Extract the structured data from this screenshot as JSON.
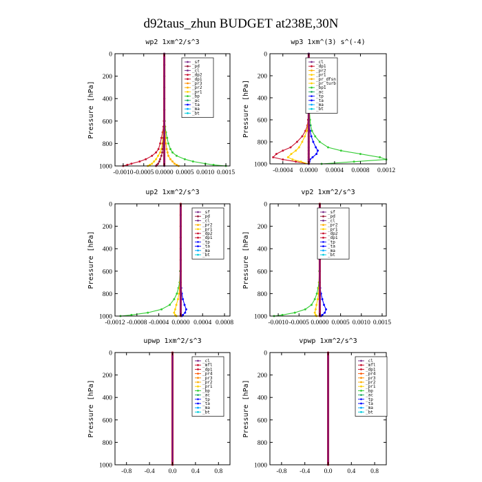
{
  "title": "d92taus_zhun  BUDGET at238E,30N",
  "colors": {
    "sf": "#7b2d8b",
    "pd": "#9b1b3b",
    "cl": "#7b2d8b",
    "dp2": "#c8102e",
    "dp1": "#c8102e",
    "pr3": "#ff8c00",
    "pr2": "#ffb000",
    "pr1": "#ffd000",
    "bp": "#33cc33",
    "ac": "#22aa66",
    "ta": "#0000ff",
    "tp": "#1a1aff",
    "ma": "#00aaff",
    "bt": "#00ccdd",
    "pr_dfsn": "#ffb000",
    "pr_turb": "#ffd000",
    "mfl": "#c8102e",
    "pr4": "#ff5500"
  },
  "chart_data": [
    {
      "type": "line",
      "title": "wp2   1xm^2/s^3",
      "ylabel": "Pressure [hPa]",
      "ylim": [
        1000,
        0
      ],
      "xlim": [
        -0.0012,
        0.0016
      ],
      "xticks": [
        -0.001,
        -0.0005,
        0.0,
        0.0005,
        0.001,
        0.0015
      ],
      "xtick_labels": [
        "-0.0010",
        "-0.0005",
        "0.0000",
        "0.0005",
        "0.0010",
        "0.0015"
      ],
      "yticks": [
        0,
        200,
        400,
        600,
        800,
        1000
      ],
      "ytick_labels": [
        "0",
        "200",
        "400",
        "600",
        "800",
        "1000"
      ],
      "legend": [
        "_sf",
        "_pd",
        "_cl",
        "_dp2",
        "_dp1",
        "_pr3",
        "_pr2",
        "_pr1",
        "_bp",
        "_ac",
        "_ta",
        "_ma",
        "_bt"
      ],
      "legend_keys": [
        "sf",
        "pd",
        "cl",
        "dp2",
        "dp1",
        "pr3",
        "pr2",
        "pr1",
        "bp",
        "ac",
        "ta",
        "ma",
        "bt"
      ],
      "levels": [
        0,
        100,
        200,
        300,
        400,
        500,
        600,
        650,
        700,
        750,
        800,
        850,
        880,
        910,
        940,
        960,
        980,
        990,
        1000
      ],
      "series": [
        {
          "key": "bp",
          "values": [
            0,
            0,
            0,
            0,
            0,
            0,
            1e-05,
            2e-05,
            4e-05,
            7e-05,
            0.0001,
            0.00015,
            0.0002,
            0.0003,
            0.0005,
            0.0007,
            0.001,
            0.0012,
            0.0015
          ]
        },
        {
          "key": "dp1",
          "values": [
            0,
            0,
            0,
            0,
            0,
            0,
            -1e-05,
            -2e-05,
            -4e-05,
            -7e-05,
            -0.0001,
            -0.00014,
            -0.0002,
            -0.0003,
            -0.00045,
            -0.0006,
            -0.0008,
            -0.0009,
            -0.001
          ]
        },
        {
          "key": "pr1",
          "values": [
            0,
            0,
            0,
            0,
            0,
            0,
            0,
            -1e-05,
            -2e-05,
            -3e-05,
            -5e-05,
            -7e-05,
            -0.0001,
            -0.00015,
            -0.0002,
            -0.00025,
            -0.0003,
            -0.00035,
            -0.0004
          ]
        },
        {
          "key": "pr2",
          "values": [
            0,
            0,
            0,
            0,
            0,
            0,
            0,
            1e-05,
            2e-05,
            3e-05,
            4e-05,
            6e-05,
            8e-05,
            0.0001,
            0.00015,
            0.0002,
            0.00025,
            0.0003,
            0.00035
          ]
        },
        {
          "key": "pd",
          "values": [
            0,
            0,
            0,
            0,
            0,
            0,
            0,
            -1e-05,
            -1e-05,
            -2e-05,
            -3e-05,
            -4e-05,
            -5e-05,
            -7e-05,
            -0.0001,
            -0.00012,
            -0.00015,
            -0.00018,
            -0.0002
          ]
        },
        {
          "key": "sf",
          "values": [
            0,
            0,
            0,
            0,
            0,
            0,
            0,
            0,
            0,
            0,
            0,
            0,
            0,
            0,
            0,
            0,
            0,
            0,
            0
          ]
        }
      ]
    },
    {
      "type": "line",
      "title": "wp3   1xm^(3) s^(-4)",
      "ylabel": "Pressure [hPa]",
      "ylim": [
        1000,
        0
      ],
      "xlim": [
        -0.0006,
        0.0012
      ],
      "xticks": [
        -0.0004,
        0.0,
        0.0004,
        0.0008,
        0.0012
      ],
      "xtick_labels": [
        "-0.0004",
        "0.0000",
        "0.0004",
        "0.0008",
        "0.0012"
      ],
      "yticks": [
        0,
        200,
        400,
        600,
        800,
        1000
      ],
      "ytick_labels": [
        "0",
        "200",
        "400",
        "600",
        "800",
        "1000"
      ],
      "legend": [
        "_cl",
        "_dp1",
        "_pr2",
        "_pr1",
        "_pr_dfsn",
        "_pr_turb",
        "_bp1",
        "_ac",
        "_tp",
        "_ta",
        "_ma",
        "_bt"
      ],
      "legend_keys": [
        "cl",
        "dp1",
        "pr2",
        "pr1",
        "pr_dfsn",
        "pr_turb",
        "bp",
        "ac",
        "tp",
        "ta",
        "ma",
        "bt"
      ],
      "levels": [
        0,
        100,
        200,
        300,
        400,
        500,
        600,
        650,
        700,
        750,
        800,
        850,
        880,
        910,
        940,
        960,
        980,
        1000
      ],
      "series": [
        {
          "key": "bp",
          "values": [
            0,
            0,
            0,
            0,
            0,
            1e-05,
            2e-05,
            3e-05,
            5e-05,
            0.0001,
            0.00017,
            0.0003,
            0.0005,
            0.0008,
            0.0011,
            0.0012,
            0.0007,
            0.0002
          ]
        },
        {
          "key": "dp1",
          "values": [
            0,
            0,
            0,
            0,
            0,
            0,
            -1e-05,
            -2e-05,
            -5e-05,
            -0.0001,
            -0.00018,
            -0.00028,
            -0.0004,
            -0.0005,
            -0.00055,
            -0.0004,
            -0.0002,
            0
          ]
        },
        {
          "key": "pr1",
          "values": [
            0,
            0,
            0,
            0,
            0,
            0,
            0,
            -1e-05,
            -3e-05,
            -6e-05,
            -0.0001,
            -0.00015,
            -0.0002,
            -0.00027,
            -0.00032,
            -0.00025,
            -0.00012,
            0
          ]
        },
        {
          "key": "ta",
          "values": [
            0,
            0,
            0,
            0,
            0,
            0,
            0,
            1e-05,
            2e-05,
            4e-05,
            7e-05,
            0.00011,
            0.00014,
            0.00012,
            6e-05,
            2e-05,
            1e-05,
            0
          ]
        },
        {
          "key": "cl",
          "values": [
            0,
            0,
            0,
            0,
            0,
            0,
            0,
            0,
            0,
            0,
            0,
            0,
            0,
            0,
            0,
            0,
            0,
            0
          ]
        }
      ]
    },
    {
      "type": "line",
      "title": "up2   1xm^2/s^3",
      "ylabel": "Pressure [hPa]",
      "ylim": [
        1000,
        0
      ],
      "xlim": [
        -0.0012,
        0.0009
      ],
      "xticks": [
        -0.0012,
        -0.0008,
        -0.0004,
        0.0,
        0.0004,
        0.0008
      ],
      "xtick_labels": [
        "-0.0012",
        "-0.0008",
        "-0.0004",
        "0.0000",
        "0.0004",
        "0.0008"
      ],
      "yticks": [
        0,
        200,
        400,
        600,
        800,
        1000
      ],
      "ytick_labels": [
        "0",
        "200",
        "400",
        "600",
        "800",
        "1000"
      ],
      "legend": [
        "_sf",
        "_pd",
        "_cl",
        "_pr2",
        "_pr1",
        "_dp2",
        "_dp1",
        "_tp",
        "_ta",
        "_ma",
        "_bt"
      ],
      "legend_keys": [
        "sf",
        "pd",
        "cl",
        "pr2",
        "pr1",
        "dp2",
        "dp1",
        "tp",
        "ta",
        "ma",
        "bt"
      ],
      "levels": [
        0,
        100,
        200,
        300,
        400,
        500,
        600,
        700,
        750,
        800,
        850,
        900,
        940,
        970,
        990,
        1000
      ],
      "series": [
        {
          "key": "bp",
          "values": [
            0,
            0,
            0,
            0,
            0,
            0,
            -1e-05,
            -2e-05,
            -4e-05,
            -7e-05,
            -0.00012,
            -0.0002,
            -0.00035,
            -0.0006,
            -0.0009,
            -0.0011
          ]
        },
        {
          "key": "ta",
          "values": [
            0,
            0,
            0,
            0,
            0,
            0,
            0,
            0,
            1e-05,
            2e-05,
            4e-05,
            7e-05,
            0.0001,
            8e-05,
            4e-05,
            2e-05
          ]
        },
        {
          "key": "pr1",
          "values": [
            0,
            0,
            0,
            0,
            0,
            0,
            0,
            -1e-05,
            -2e-05,
            -3e-05,
            -5e-05,
            -8e-05,
            -0.0001,
            -0.00012,
            -0.0001,
            -8e-05
          ]
        },
        {
          "key": "dp1",
          "values": [
            0,
            0,
            0,
            0,
            0,
            0,
            0,
            0,
            0,
            0,
            0,
            0,
            0,
            0,
            0,
            0
          ]
        }
      ]
    },
    {
      "type": "line",
      "title": "vp2   1xm^2/s^3",
      "ylabel": "Pressure [hPa]",
      "ylim": [
        1000,
        0
      ],
      "xlim": [
        -0.0012,
        0.0016
      ],
      "xticks": [
        -0.001,
        -0.0005,
        0.0,
        0.0005,
        0.001,
        0.0015
      ],
      "xtick_labels": [
        "-0.0010",
        "-0.0005",
        "0.0000",
        "0.0005",
        "0.0010",
        "0.0015"
      ],
      "yticks": [
        0,
        200,
        400,
        600,
        800,
        1000
      ],
      "ytick_labels": [
        "0",
        "200",
        "400",
        "600",
        "800",
        "1000"
      ],
      "legend": [
        "_sf",
        "_pd",
        "_cl",
        "_pr2",
        "_pr1",
        "_dp2",
        "_dp1",
        "_tp",
        "_ta",
        "_ma",
        "_bt"
      ],
      "legend_keys": [
        "sf",
        "pd",
        "cl",
        "pr2",
        "pr1",
        "dp2",
        "dp1",
        "tp",
        "ta",
        "ma",
        "bt"
      ],
      "levels": [
        0,
        100,
        200,
        300,
        400,
        500,
        600,
        700,
        750,
        800,
        850,
        900,
        940,
        970,
        990,
        1000
      ],
      "series": [
        {
          "key": "bp",
          "values": [
            0,
            0,
            0,
            0,
            0,
            0,
            -1e-05,
            -2e-05,
            -4e-05,
            -7e-05,
            -0.00012,
            -0.0002,
            -0.00035,
            -0.0006,
            -0.0009,
            -0.0011
          ]
        },
        {
          "key": "ta",
          "values": [
            0,
            0,
            0,
            0,
            0,
            0,
            0,
            0,
            1e-05,
            3e-05,
            6e-05,
            0.0001,
            0.00015,
            0.00012,
            6e-05,
            3e-05
          ]
        },
        {
          "key": "pr1",
          "values": [
            0,
            0,
            0,
            0,
            0,
            0,
            0,
            -1e-05,
            -2e-05,
            -3e-05,
            -5e-05,
            -8e-05,
            -0.0001,
            -0.00012,
            -0.0001,
            -8e-05
          ]
        },
        {
          "key": "dp1",
          "values": [
            0,
            0,
            0,
            0,
            0,
            0,
            0,
            0,
            0,
            0,
            0,
            0,
            0,
            0,
            0,
            0
          ]
        }
      ]
    },
    {
      "type": "line",
      "title": "upwp   1xm^2/s^3",
      "ylabel": "Pressure [hPa]",
      "ylim": [
        1000,
        0
      ],
      "xlim": [
        -1.0,
        1.0
      ],
      "xticks": [
        -0.8,
        -0.4,
        0.0,
        0.4,
        0.8
      ],
      "xtick_labels": [
        "-0.8",
        "-0.4",
        "0.0",
        "0.4",
        "0.8"
      ],
      "yticks": [
        0,
        200,
        400,
        600,
        800,
        1000
      ],
      "ytick_labels": [
        "0",
        "200",
        "400",
        "600",
        "800",
        "1000"
      ],
      "legend": [
        "_cl",
        "_mfl",
        "_dp1",
        "_pr4",
        "_pr3",
        "_pr2",
        "_pr1",
        "_bp",
        "_ac",
        "_tp",
        "_ta",
        "_ma",
        "_bt"
      ],
      "legend_keys": [
        "cl",
        "mfl",
        "dp1",
        "pr4",
        "pr3",
        "pr2",
        "pr1",
        "bp",
        "ac",
        "tp",
        "ta",
        "ma",
        "bt"
      ],
      "levels": [
        0,
        100,
        200,
        300,
        400,
        500,
        600,
        700,
        800,
        900,
        1000
      ],
      "series": [
        {
          "key": "cl",
          "values": [
            0,
            0,
            0,
            0,
            0,
            0,
            0,
            0,
            0,
            0,
            0
          ]
        },
        {
          "key": "dp1",
          "values": [
            0,
            0,
            0,
            0,
            0,
            0,
            0,
            0,
            0,
            0,
            0
          ]
        }
      ]
    },
    {
      "type": "line",
      "title": "vpwp   1xm^2/s^3",
      "ylabel": "Pressure [hPa]",
      "ylim": [
        1000,
        0
      ],
      "xlim": [
        -1.0,
        1.0
      ],
      "xticks": [
        -0.8,
        -0.4,
        0.0,
        0.4,
        0.8
      ],
      "xtick_labels": [
        "-0.8",
        "-0.4",
        "0.0",
        "0.4",
        "0.8"
      ],
      "yticks": [
        0,
        200,
        400,
        600,
        800,
        1000
      ],
      "ytick_labels": [
        "0",
        "200",
        "400",
        "600",
        "800",
        "1000"
      ],
      "legend": [
        "_cl",
        "_mfl",
        "_dp1",
        "_pr4",
        "_pr3",
        "_pr2",
        "_pr1",
        "_bp",
        "_ac",
        "_tp",
        "_ta",
        "_ma",
        "_bt"
      ],
      "legend_keys": [
        "cl",
        "mfl",
        "dp1",
        "pr4",
        "pr3",
        "pr2",
        "pr1",
        "bp",
        "ac",
        "tp",
        "ta",
        "ma",
        "bt"
      ],
      "levels": [
        0,
        100,
        200,
        300,
        400,
        500,
        600,
        700,
        800,
        900,
        1000
      ],
      "series": [
        {
          "key": "cl",
          "values": [
            0,
            0,
            0,
            0,
            0,
            0,
            0,
            0,
            0,
            0,
            0
          ]
        },
        {
          "key": "dp1",
          "values": [
            0,
            0,
            0,
            0,
            0,
            0,
            0,
            0,
            0,
            0,
            0
          ]
        }
      ]
    }
  ]
}
